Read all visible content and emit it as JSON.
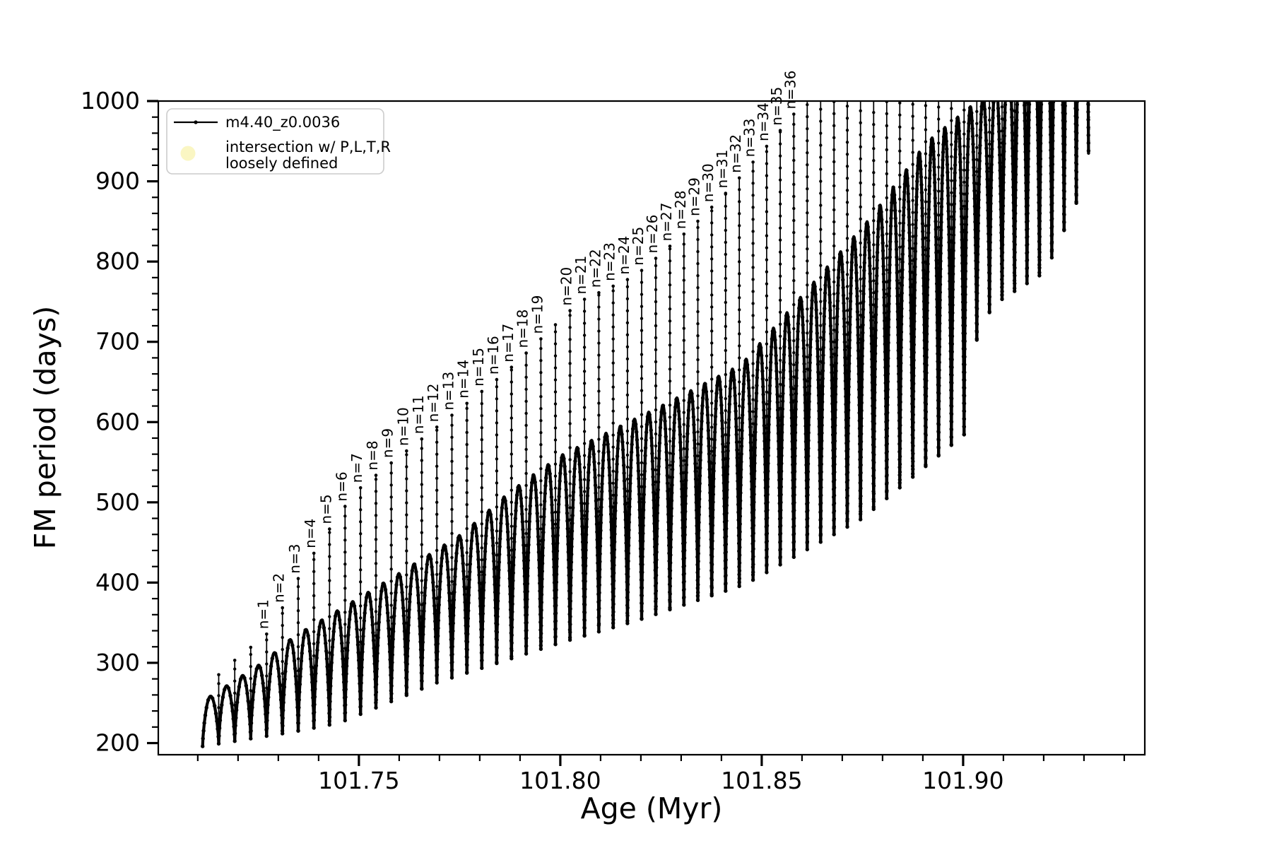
{
  "figure": {
    "background": "#ffffff",
    "curve_color": "#000000"
  },
  "legend": {
    "entries": [
      {
        "label": "m4.40_z0.0036",
        "marker": "line-with-point",
        "color": "#000000"
      },
      {
        "label_lines": [
          "intersection w/ P,L,T,R",
          "loosely defined"
        ],
        "marker": "circle",
        "color": "#faf6c0"
      }
    ]
  },
  "chart_data": {
    "type": "line",
    "title": "",
    "xlabel": "Age (Myr)",
    "ylabel": "FM period (days)",
    "series": [
      {
        "name": "m4.40_z0.0036",
        "color": "#000000",
        "style": "solid line with point markers"
      }
    ],
    "xlim": [
      101.7002,
      101.9451
    ],
    "ylim": [
      185.5,
      1000
    ],
    "xticks": [
      101.75,
      101.8,
      101.85,
      101.9
    ],
    "xtick_labels": [
      "101.75",
      "101.80",
      "101.85",
      "101.90"
    ],
    "yticks": [
      200,
      300,
      400,
      500,
      600,
      700,
      800,
      900,
      1000
    ],
    "x_minor_step": 0.01,
    "y_minor_step": 20,
    "grid": false,
    "legend_position": "upper left",
    "oscillation": {
      "description": "FM period oscillates in arch-shaped cycles; at each cycle boundary a narrow vertical spike rises to the resonance envelope. Spike tops are labeled n=1..36; beyond n=36 spikes and arches are clipped at 1000 days.",
      "age_start": 101.7112,
      "age_end": 101.934,
      "cycle_width_start": 0.004,
      "cycle_width_end": 0.003,
      "arch_exponent": 0.7,
      "spike_top_envelope": [
        [
          101.7112,
          268
        ],
        [
          101.7154,
          286
        ],
        [
          101.7196,
          305
        ],
        [
          101.7238,
          322
        ],
        [
          101.7281,
          340
        ],
        [
          101.7337,
          395
        ],
        [
          101.7411,
          455
        ],
        [
          101.7489,
          512
        ],
        [
          101.757,
          545
        ],
        [
          101.776,
          620
        ],
        [
          101.7872,
          665
        ],
        [
          101.8047,
          750
        ],
        [
          101.8186,
          782
        ],
        [
          101.8325,
          842
        ],
        [
          101.842,
          890
        ],
        [
          101.8544,
          962
        ],
        [
          101.859,
          990
        ],
        [
          101.872,
          1060
        ],
        [
          101.934,
          1140
        ]
      ],
      "arch_peak_envelope": [
        [
          101.7112,
          252
        ],
        [
          101.726,
          300
        ],
        [
          101.7337,
          332
        ],
        [
          101.749,
          378
        ],
        [
          101.757,
          402
        ],
        [
          101.776,
          462
        ],
        [
          101.7872,
          512
        ],
        [
          101.8,
          558
        ],
        [
          101.8258,
          622
        ],
        [
          101.845,
          672
        ],
        [
          101.8776,
          858
        ],
        [
          101.8908,
          948
        ],
        [
          101.9065,
          1012
        ],
        [
          101.92,
          1150
        ],
        [
          101.934,
          1330
        ]
      ],
      "dip_bottom_envelope": [
        [
          101.7112,
          196
        ],
        [
          101.7337,
          214
        ],
        [
          101.745,
          225
        ],
        [
          101.7697,
          276
        ],
        [
          101.8,
          325
        ],
        [
          101.8186,
          352
        ],
        [
          101.846,
          398
        ],
        [
          101.875,
          480
        ],
        [
          101.9004,
          585
        ],
        [
          101.9039,
          722
        ],
        [
          101.9093,
          752
        ],
        [
          101.9156,
          772
        ],
        [
          101.9207,
          788
        ],
        [
          101.9235,
          824
        ],
        [
          101.9258,
          846
        ],
        [
          101.9282,
          874
        ],
        [
          101.9305,
          928
        ],
        [
          101.9332,
          958
        ]
      ]
    },
    "resonance_labels": {
      "prefix": "n=",
      "values": [
        1,
        2,
        3,
        4,
        5,
        6,
        7,
        8,
        9,
        10,
        11,
        12,
        13,
        14,
        15,
        16,
        17,
        18,
        19,
        20,
        21,
        22,
        23,
        24,
        25,
        26,
        27,
        28,
        29,
        30,
        31,
        32,
        33,
        34,
        35,
        36
      ],
      "labels": [
        "n=1",
        "n=2",
        "n=3",
        "n=4",
        "n=5",
        "n=6",
        "n=7",
        "n=8",
        "n=9",
        "n=10",
        "n=11",
        "n=12",
        "n=13",
        "n=14",
        "n=15",
        "n=16",
        "n=17",
        "n=18",
        "n=19",
        "n=20",
        "n=21",
        "n=22",
        "n=23",
        "n=24",
        "n=25",
        "n=26",
        "n=27",
        "n=28",
        "n=29",
        "n=30",
        "n=31",
        "n=32",
        "n=33",
        "n=34",
        "n=35",
        "n=36"
      ],
      "first_boundary_index": 4,
      "skip_after_value": 19
    }
  }
}
